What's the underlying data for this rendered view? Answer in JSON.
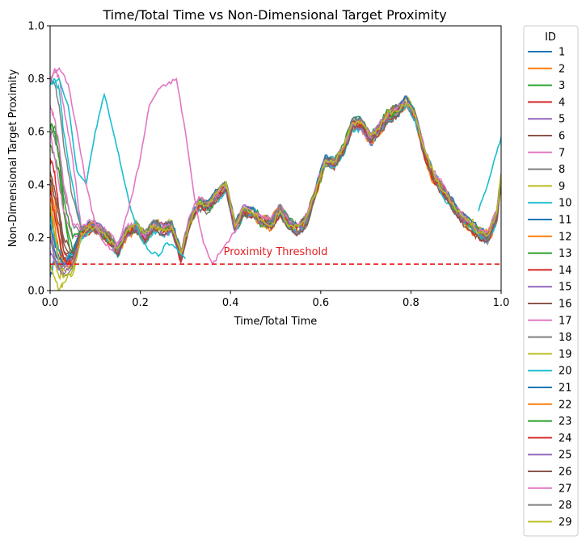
{
  "chart_data": {
    "type": "line",
    "title": "Time/Total Time vs Non-Dimensional Target Proximity",
    "xlabel": "Time/Total Time",
    "ylabel": "Non-Dimensional Target Proximity",
    "xlim": [
      0,
      1
    ],
    "ylim": [
      0,
      1
    ],
    "xticks": [
      "0.0",
      "0.2",
      "0.4",
      "0.6",
      "0.8",
      "1.0"
    ],
    "yticks": [
      "0.0",
      "0.2",
      "0.4",
      "0.6",
      "0.8",
      "1.0"
    ],
    "grid": false,
    "legend": {
      "title": "ID",
      "placement": "outside right"
    },
    "threshold": {
      "y": 0.1,
      "label": "Proximity Threshold",
      "color": "#e41a1c",
      "style": "dashed"
    },
    "colors": [
      "#1f77b4",
      "#ff7f0e",
      "#2ca02c",
      "#d62728",
      "#9467bd",
      "#8c564b",
      "#e377c2",
      "#7f7f7f",
      "#bcbd22",
      "#17becf"
    ],
    "x": [
      0,
      0.01,
      0.02,
      0.03,
      0.05,
      0.07,
      0.09,
      0.11,
      0.13,
      0.15,
      0.17,
      0.19,
      0.21,
      0.23,
      0.25,
      0.27,
      0.29,
      0.31,
      0.33,
      0.35,
      0.37,
      0.39,
      0.41,
      0.43,
      0.45,
      0.47,
      0.49,
      0.51,
      0.53,
      0.55,
      0.57,
      0.59,
      0.61,
      0.63,
      0.65,
      0.67,
      0.69,
      0.71,
      0.73,
      0.75,
      0.77,
      0.79,
      0.81,
      0.83,
      0.85,
      0.87,
      0.89,
      0.91,
      0.93,
      0.95,
      0.97,
      0.99,
      1.0
    ],
    "common_tail": [
      0.22,
      0.2,
      0.21,
      0.18,
      0.17,
      0.22,
      0.24,
      0.23,
      0.2,
      0.15,
      0.22,
      0.24,
      0.2,
      0.25,
      0.23,
      0.24,
      0.13,
      0.26,
      0.33,
      0.32,
      0.36,
      0.4,
      0.24,
      0.3,
      0.29,
      0.26,
      0.25,
      0.31,
      0.25,
      0.23,
      0.27,
      0.38,
      0.49,
      0.48,
      0.53,
      0.63,
      0.63,
      0.57,
      0.61,
      0.66,
      0.68,
      0.71,
      0.66,
      0.52,
      0.43,
      0.38,
      0.33,
      0.28,
      0.25,
      0.22,
      0.2,
      0.28,
      0.42
    ],
    "series": [
      {
        "name": "1",
        "start": [
          0.05,
          0.12,
          0.08,
          0.1,
          0.15
        ]
      },
      {
        "name": "2",
        "start": [
          0.45,
          0.35,
          0.2,
          0.1,
          0.08
        ]
      },
      {
        "name": "3",
        "start": [
          0.58,
          0.62,
          0.55,
          0.3,
          0.08
        ]
      },
      {
        "name": "4",
        "start": [
          0.5,
          0.45,
          0.3,
          0.15,
          0.1
        ]
      },
      {
        "name": "5",
        "start": [
          0.25,
          0.15,
          0.1,
          0.08,
          0.12
        ]
      },
      {
        "name": "6",
        "start": [
          0.4,
          0.3,
          0.25,
          0.15,
          0.12
        ]
      },
      {
        "name": "7",
        "start": [
          0.78,
          0.84,
          0.8,
          0.7,
          0.5
        ]
      },
      {
        "name": "8",
        "start": [
          0.3,
          0.2,
          0.1,
          0.05,
          0.08
        ]
      },
      {
        "name": "9",
        "start": [
          0.1,
          0.05,
          0.0,
          0.03,
          0.08
        ]
      },
      {
        "name": "10",
        "start": [
          0.78,
          0.8,
          0.76,
          0.6,
          0.4
        ]
      },
      {
        "name": "11",
        "start": [
          0.2,
          0.15,
          0.12,
          0.1,
          0.15
        ]
      },
      {
        "name": "12",
        "start": [
          0.35,
          0.25,
          0.15,
          0.1,
          0.12
        ]
      },
      {
        "name": "13",
        "start": [
          0.55,
          0.5,
          0.45,
          0.3,
          0.15
        ]
      },
      {
        "name": "14",
        "start": [
          0.3,
          0.2,
          0.15,
          0.12,
          0.1
        ]
      },
      {
        "name": "15",
        "start": [
          0.15,
          0.1,
          0.08,
          0.1,
          0.12
        ]
      },
      {
        "name": "16",
        "start": [
          0.42,
          0.35,
          0.28,
          0.18,
          0.12
        ]
      },
      {
        "name": "17",
        "start": [
          0.6,
          0.5,
          0.4,
          0.3,
          0.2
        ]
      },
      {
        "name": "18",
        "start": [
          0.62,
          0.58,
          0.5,
          0.38,
          0.25
        ]
      },
      {
        "name": "19",
        "start": [
          0.22,
          0.12,
          0.05,
          0.08,
          0.1
        ]
      },
      {
        "name": "20",
        "start": [
          0.28,
          0.2,
          0.15,
          0.12,
          0.14
        ]
      },
      {
        "name": "21",
        "start": [
          0.25,
          0.18,
          0.12,
          0.1,
          0.13
        ]
      },
      {
        "name": "22",
        "start": [
          0.4,
          0.3,
          0.2,
          0.12,
          0.1
        ]
      },
      {
        "name": "23",
        "start": [
          0.63,
          0.6,
          0.5,
          0.35,
          0.2
        ]
      },
      {
        "name": "24",
        "start": [
          0.38,
          0.28,
          0.2,
          0.12,
          0.1
        ]
      },
      {
        "name": "25",
        "start": [
          0.2,
          0.12,
          0.08,
          0.06,
          0.1
        ]
      },
      {
        "name": "26",
        "start": [
          0.45,
          0.38,
          0.3,
          0.2,
          0.14
        ]
      },
      {
        "name": "27",
        "start": [
          0.7,
          0.65,
          0.55,
          0.4,
          0.25
        ]
      },
      {
        "name": "28",
        "start": [
          0.8,
          0.78,
          0.7,
          0.55,
          0.35
        ]
      },
      {
        "name": "29",
        "start": [
          0.32,
          0.22,
          0.1,
          0.05,
          0.06
        ]
      }
    ],
    "special_series": [
      {
        "name": "10",
        "x": [
          0.0,
          0.02,
          0.04,
          0.06,
          0.08,
          0.1,
          0.12,
          0.14,
          0.16,
          0.18,
          0.2,
          0.22,
          0.24,
          0.26,
          0.28,
          0.3
        ],
        "values": [
          0.78,
          0.8,
          0.7,
          0.45,
          0.4,
          0.6,
          0.74,
          0.6,
          0.45,
          0.3,
          0.2,
          0.15,
          0.13,
          0.18,
          0.16,
          0.12
        ]
      },
      {
        "name": "7",
        "x": [
          0.0,
          0.02,
          0.04,
          0.06,
          0.08,
          0.1,
          0.12,
          0.14,
          0.16,
          0.18,
          0.2,
          0.22,
          0.24,
          0.26,
          0.28,
          0.3,
          0.32,
          0.34,
          0.36,
          0.38,
          0.4,
          0.42
        ],
        "values": [
          0.8,
          0.84,
          0.78,
          0.6,
          0.4,
          0.25,
          0.18,
          0.15,
          0.22,
          0.35,
          0.5,
          0.7,
          0.76,
          0.78,
          0.8,
          0.6,
          0.35,
          0.18,
          0.1,
          0.15,
          0.2,
          0.25
        ]
      },
      {
        "name": "10",
        "x": [
          0.95,
          0.97,
          0.99,
          1.0
        ],
        "values": [
          0.3,
          0.4,
          0.52,
          0.58
        ]
      }
    ]
  }
}
